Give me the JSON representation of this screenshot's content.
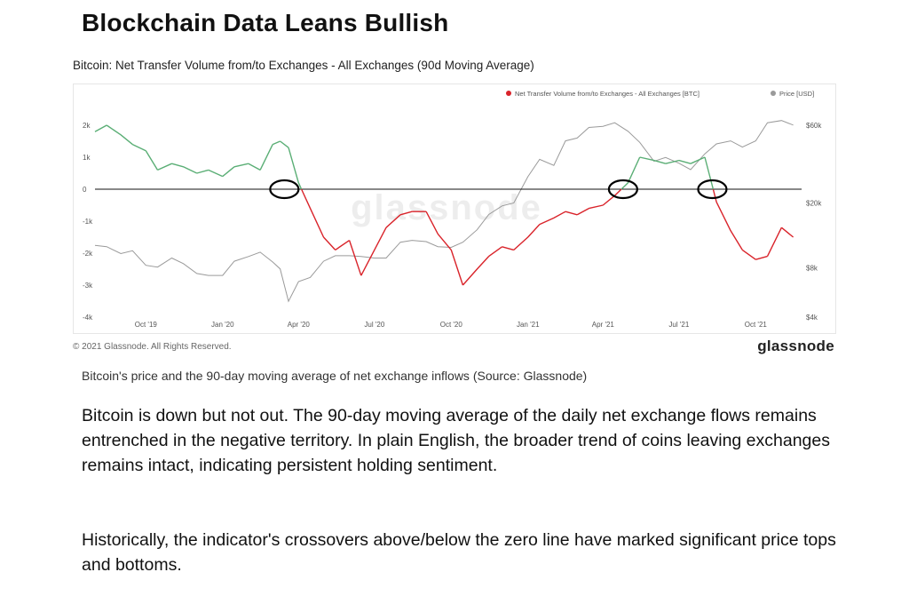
{
  "article": {
    "headline": "Blockchain Data Leans Bullish",
    "caption": "Bitcoin's price and the 90-day moving average of net exchange inflows (Source: Glassnode)",
    "paragraphs": [
      "Bitcoin is down but not out. The 90-day moving average of the daily net exchange flows remains entrenched in the negative territory. In plain English, the broader trend of coins leaving exchanges remains intact, indicating persistent holding sentiment.",
      "Historically, the indicator's crossovers above/below the zero line have marked significant price tops and bottoms."
    ]
  },
  "chart_meta": {
    "copyright": "© 2021 Glassnode. All Rights Reserved.",
    "brand": "glassnode",
    "watermark": "glassnode"
  },
  "colors": {
    "positive": "#5aae75",
    "negative": "#d9232a",
    "price": "#9a9a9a",
    "zero_line": "#111111"
  },
  "chart_data": {
    "type": "line",
    "title": "Bitcoin: Net Transfer Volume from/to Exchanges - All Exchanges (90d Moving Average)",
    "legend": {
      "position": "top-right",
      "entries": [
        {
          "name": "Net Transfer Volume from/to Exchanges - All Exchanges [BTC]",
          "color": "#d9232a"
        },
        {
          "name": "Price [USD]",
          "color": "#9a9a9a"
        }
      ]
    },
    "x_ticks": [
      "Oct '19",
      "Jan '20",
      "Apr '20",
      "Jul '20",
      "Oct '20",
      "Jan '21",
      "Apr '21",
      "Jul '21",
      "Oct '21"
    ],
    "y_left": {
      "ticks": [
        "2k",
        "1k",
        "0",
        "-1k",
        "-2k",
        "-3k",
        "-4k"
      ],
      "values": [
        2000,
        1000,
        0,
        -1000,
        -2000,
        -3000,
        -4000
      ],
      "range": [
        -4000,
        2500
      ]
    },
    "y_right": {
      "scale": "log",
      "ticks": [
        "$60k",
        "$20k",
        "$8k",
        "$4k"
      ],
      "values": [
        60000,
        20000,
        8000,
        4000
      ],
      "range": [
        4000,
        75000
      ]
    },
    "series": [
      {
        "name": "Net Transfer Volume from/to Exchanges - All Exchanges [BTC]",
        "axis": "left",
        "x": [
          "2019-08-01",
          "2019-08-15",
          "2019-09-01",
          "2019-09-15",
          "2019-10-01",
          "2019-10-15",
          "2019-11-01",
          "2019-11-15",
          "2019-12-01",
          "2019-12-15",
          "2020-01-01",
          "2020-01-15",
          "2020-02-01",
          "2020-02-15",
          "2020-03-01",
          "2020-03-10",
          "2020-03-20",
          "2020-04-01",
          "2020-04-15",
          "2020-05-01",
          "2020-05-15",
          "2020-06-01",
          "2020-06-15",
          "2020-07-01",
          "2020-07-15",
          "2020-08-01",
          "2020-08-15",
          "2020-09-01",
          "2020-09-15",
          "2020-10-01",
          "2020-10-15",
          "2020-11-01",
          "2020-11-15",
          "2020-12-01",
          "2020-12-15",
          "2021-01-01",
          "2021-01-15",
          "2021-02-01",
          "2021-02-15",
          "2021-03-01",
          "2021-03-15",
          "2021-04-01",
          "2021-04-15",
          "2021-05-01",
          "2021-05-15",
          "2021-06-01",
          "2021-06-15",
          "2021-07-01",
          "2021-07-15",
          "2021-08-01",
          "2021-08-15",
          "2021-09-01",
          "2021-09-15",
          "2021-10-01",
          "2021-10-15",
          "2021-11-01",
          "2021-11-15"
        ],
        "y": [
          1800,
          2000,
          1700,
          1400,
          1200,
          600,
          800,
          700,
          500,
          600,
          400,
          700,
          800,
          600,
          1400,
          1500,
          1300,
          200,
          -600,
          -1500,
          -1900,
          -1600,
          -2700,
          -1900,
          -1200,
          -800,
          -700,
          -700,
          -1400,
          -1900,
          -3000,
          -2500,
          -2100,
          -1800,
          -1900,
          -1500,
          -1100,
          -900,
          -700,
          -800,
          -600,
          -500,
          -200,
          200,
          1000,
          900,
          800,
          900,
          800,
          1000,
          -400,
          -1300,
          -1900,
          -2200,
          -2100,
          -1200,
          -1500
        ]
      },
      {
        "name": "Price [USD]",
        "axis": "right",
        "x": [
          "2019-08-01",
          "2019-08-15",
          "2019-09-01",
          "2019-09-15",
          "2019-10-01",
          "2019-10-15",
          "2019-11-01",
          "2019-11-15",
          "2019-12-01",
          "2019-12-15",
          "2020-01-01",
          "2020-01-15",
          "2020-02-01",
          "2020-02-15",
          "2020-03-01",
          "2020-03-10",
          "2020-03-20",
          "2020-04-01",
          "2020-04-15",
          "2020-05-01",
          "2020-05-15",
          "2020-06-01",
          "2020-06-15",
          "2020-07-01",
          "2020-07-15",
          "2020-08-01",
          "2020-08-15",
          "2020-09-01",
          "2020-09-15",
          "2020-10-01",
          "2020-10-15",
          "2020-11-01",
          "2020-11-15",
          "2020-12-01",
          "2020-12-15",
          "2021-01-01",
          "2021-01-15",
          "2021-02-01",
          "2021-02-15",
          "2021-03-01",
          "2021-03-15",
          "2021-04-01",
          "2021-04-15",
          "2021-05-01",
          "2021-05-15",
          "2021-06-01",
          "2021-06-15",
          "2021-07-01",
          "2021-07-15",
          "2021-08-01",
          "2021-08-15",
          "2021-09-01",
          "2021-09-15",
          "2021-10-01",
          "2021-10-15",
          "2021-11-01",
          "2021-11-15"
        ],
        "y": [
          11000,
          10800,
          9800,
          10200,
          8300,
          8100,
          9200,
          8500,
          7400,
          7200,
          7200,
          8800,
          9400,
          10000,
          8700,
          7900,
          5000,
          6600,
          7000,
          8800,
          9500,
          9500,
          9400,
          9200,
          9200,
          11500,
          11800,
          11600,
          10800,
          10700,
          11500,
          13700,
          17000,
          19200,
          20000,
          29000,
          37000,
          34000,
          48000,
          50000,
          58000,
          59000,
          62000,
          55000,
          47000,
          36000,
          38000,
          35000,
          32000,
          40000,
          46000,
          48000,
          44000,
          48000,
          62000,
          64000,
          60000
        ]
      }
    ],
    "annotations": [
      {
        "type": "circle",
        "label": "zero-line crossover",
        "x": "2020-03-15",
        "y": 0
      },
      {
        "type": "circle",
        "label": "zero-line crossover",
        "x": "2021-04-25",
        "y": 0
      },
      {
        "type": "circle",
        "label": "zero-line crossover",
        "x": "2021-08-10",
        "y": 0
      }
    ]
  }
}
